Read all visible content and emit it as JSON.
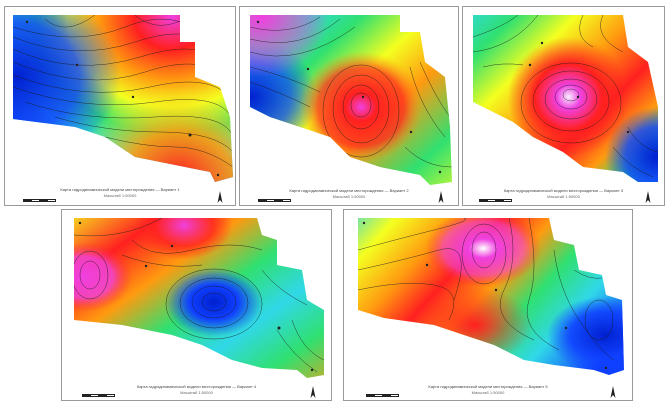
{
  "figure": {
    "panels": [
      {
        "id": 1,
        "caption": "Карта гидродинамической модели месторождения — Вариант 1",
        "subcaption": "Масштаб 1:50000"
      },
      {
        "id": 2,
        "caption": "Карта гидродинамической модели месторождения — Вариант 2",
        "subcaption": "Масштаб 1:50000"
      },
      {
        "id": 3,
        "caption": "Карта гидродинамической модели месторождения — Вариант 3",
        "subcaption": "Масштаб 1:50000"
      },
      {
        "id": 4,
        "caption": "Карта гидродинамической модели месторождения — Вариант 4",
        "subcaption": "Масштаб 1:50000"
      },
      {
        "id": 5,
        "caption": "Карта гидродинамической модели месторождения — Вариант 5",
        "subcaption": "Масштаб 1:50000"
      }
    ],
    "colors": {
      "magenta": "#f040e0",
      "red": "#ff2020",
      "orange": "#ff9a10",
      "yellow": "#f4ff20",
      "green": "#30e070",
      "cyan": "#30d8e8",
      "blue": "#1040ff",
      "deep_blue": "#0020d0",
      "contour": "#1a1a1a",
      "frame": "#9a9a9a"
    },
    "icons": [
      "north-arrow-icon",
      "scale-bar-icon",
      "well-marker-icon"
    ]
  }
}
